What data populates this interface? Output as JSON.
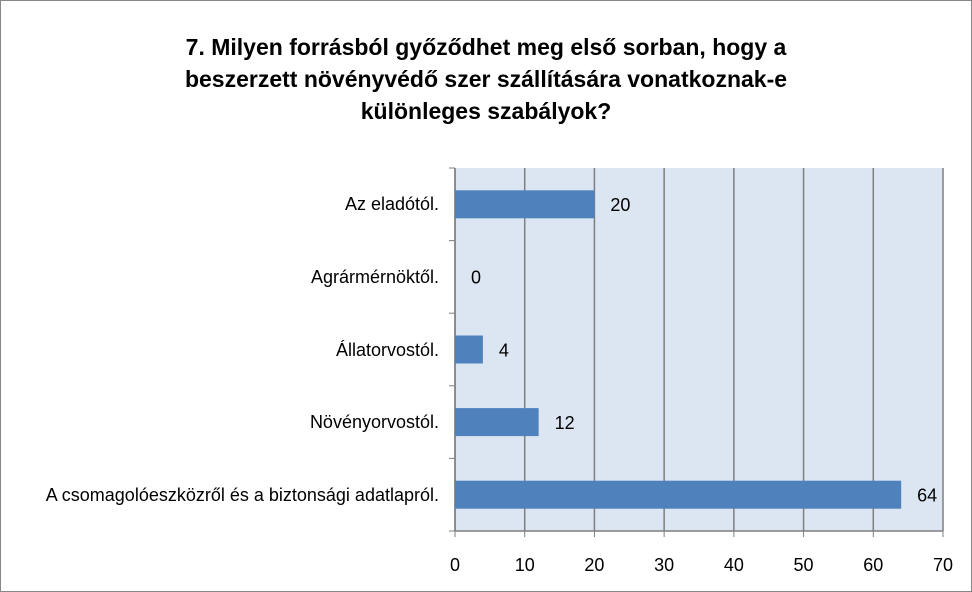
{
  "chart_data": {
    "type": "barh",
    "title": "7. Milyen forrásból győződhet meg első sorban, hogy a beszerzett növényvédő szer szállítására vonatkoznak-e különleges szabályok?",
    "categories": [
      "Az eladótól.",
      "Agrármérnöktől.",
      "Állatorvostól.",
      "Növényorvostól.",
      "A csomagolóeszközről és a biztonsági adatlapról."
    ],
    "values": [
      20,
      0,
      4,
      12,
      64
    ],
    "color": "#4f81bd",
    "xlim": [
      0,
      70
    ],
    "xticks": [
      0,
      10,
      20,
      30,
      40,
      50,
      60,
      70
    ],
    "grid": true
  }
}
